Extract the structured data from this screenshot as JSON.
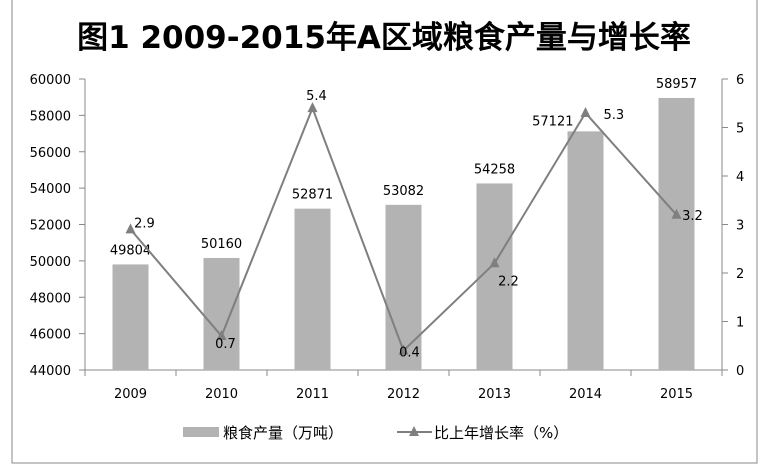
{
  "chart_data": {
    "type": "bar+line",
    "title": "图1 2009-2015年A区域粮食产量与增长率",
    "categories": [
      "2009",
      "2010",
      "2011",
      "2012",
      "2013",
      "2014",
      "2015"
    ],
    "series": [
      {
        "name": "粮食产量（万吨）",
        "type": "bar",
        "axis": "left",
        "values": [
          49804,
          50160,
          52871,
          53082,
          54258,
          57121,
          58957
        ],
        "color": "#b3b3b3"
      },
      {
        "name": "比上年增长率（%）",
        "type": "line",
        "axis": "right",
        "marker": "triangle",
        "values": [
          2.9,
          0.7,
          5.4,
          0.4,
          2.2,
          5.3,
          3.2
        ],
        "color": "#7f7f7f"
      }
    ],
    "ylim_left": [
      44000,
      60000
    ],
    "yticks_left": [
      "44000",
      "46000",
      "48000",
      "50000",
      "52000",
      "54000",
      "56000",
      "58000",
      "60000"
    ],
    "ylim_right": [
      0,
      6
    ],
    "yticks_right": [
      "0",
      "1",
      "2",
      "3",
      "4",
      "5",
      "6"
    ],
    "grid": false,
    "legend_position": "bottom"
  }
}
